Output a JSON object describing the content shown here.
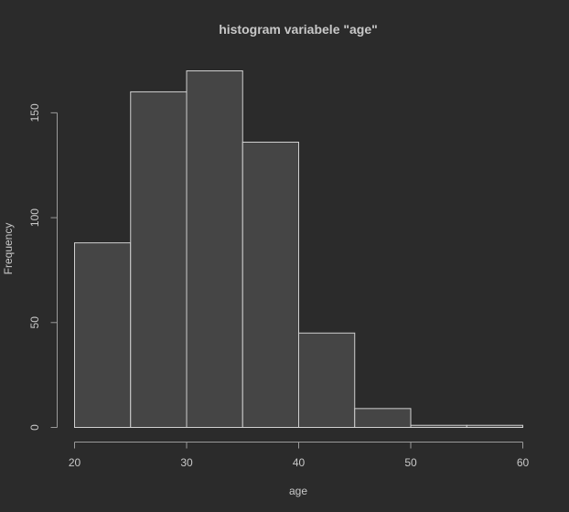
{
  "chart_data": {
    "type": "bar",
    "title": "histogram variabele \"age\"",
    "xlabel": "age",
    "ylabel": "Frequency",
    "bin_edges": [
      20,
      25,
      30,
      35,
      40,
      45,
      50,
      55,
      60
    ],
    "values": [
      88,
      160,
      170,
      136,
      45,
      9,
      1,
      1
    ],
    "xlim": [
      20,
      60
    ],
    "ylim": [
      0,
      170
    ],
    "x_ticks": [
      20,
      30,
      40,
      50,
      60
    ],
    "y_ticks": [
      0,
      50,
      100,
      150
    ],
    "x_tick_labels": [
      "20",
      "30",
      "40",
      "50",
      "60"
    ],
    "y_tick_labels": [
      "0",
      "50",
      "100",
      "150"
    ],
    "grid": false,
    "colors": {
      "background": "#2b2b2b",
      "bar_fill": "#454545",
      "bar_stroke": "#d0d0d0",
      "axis": "#9a9a9a",
      "text": "#c8c8c8"
    }
  }
}
